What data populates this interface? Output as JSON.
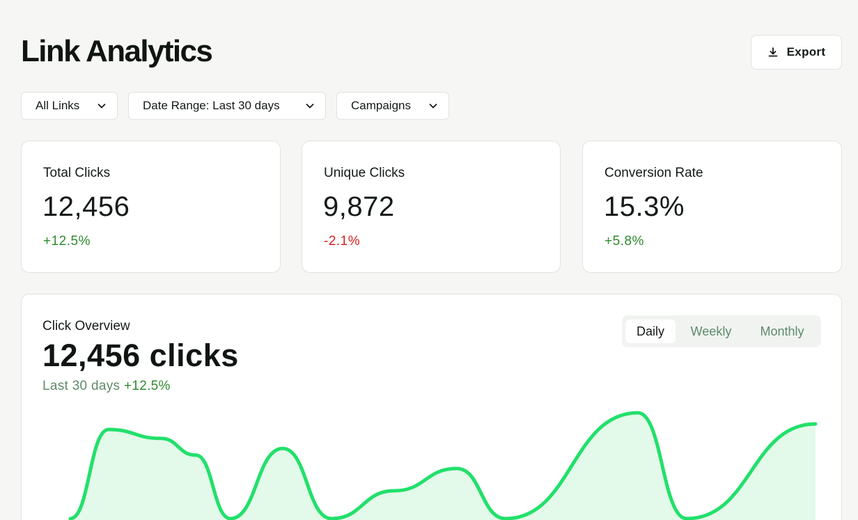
{
  "header": {
    "title": "Link Analytics",
    "export_label": "Export",
    "export_icon": "download-icon"
  },
  "filters": [
    {
      "label": "All Links",
      "icon": "chevron-down-icon"
    },
    {
      "label": "Date Range: Last 30 days",
      "icon": "chevron-down-icon"
    },
    {
      "label": "Campaigns",
      "icon": "chevron-down-icon"
    }
  ],
  "stats": [
    {
      "label": "Total Clicks",
      "value": "12,456",
      "change": "+12.5%",
      "trend": "up"
    },
    {
      "label": "Unique Clicks",
      "value": "9,872",
      "change": "-2.1%",
      "trend": "down"
    },
    {
      "label": "Conversion Rate",
      "value": "15.3%",
      "change": "+5.8%",
      "trend": "up"
    }
  ],
  "overview": {
    "title": "Click Overview",
    "value": "12,456 clicks",
    "period": "Last 30 days",
    "change": "+12.5%",
    "tabs": [
      {
        "label": "Daily",
        "active": true
      },
      {
        "label": "Weekly",
        "active": false
      },
      {
        "label": "Monthly",
        "active": false
      }
    ]
  },
  "colors": {
    "positive": "#2e8a2e",
    "negative": "#d91f1f",
    "line": "#22e06b",
    "fill": "#e3f9ea"
  },
  "chart_data": {
    "type": "area",
    "note_visible_region": "only upper portion of curve visible; no axes or labels shown",
    "values": [
      0.05,
      0.85,
      0.77,
      0.62,
      0.05,
      0.68,
      0.05,
      0.3,
      0.5,
      0.05,
      1.0,
      0.05,
      0.9
    ]
  }
}
